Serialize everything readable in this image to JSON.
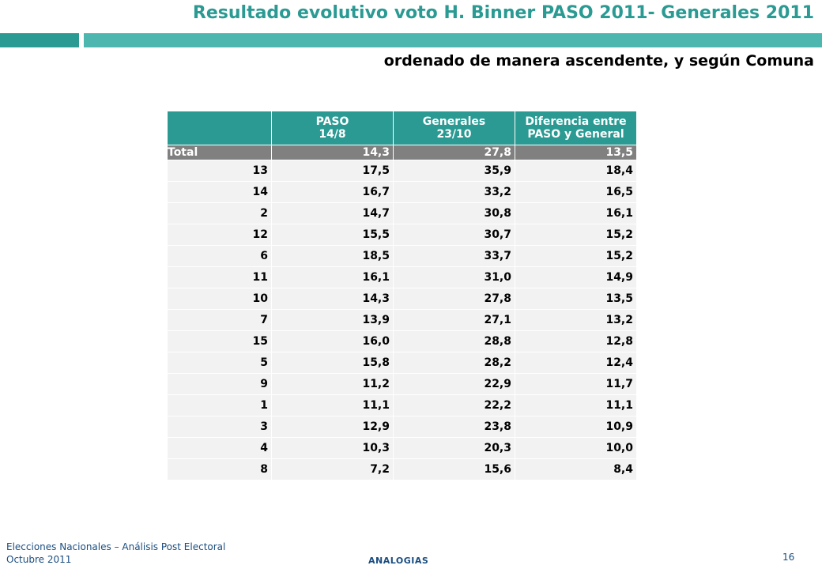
{
  "title": "Resultado evolutivo voto H. Binner PASO 2011- Generales 2011",
  "subtitle": "ordenado de manera ascendente, y según Comuna",
  "table": {
    "headers": [
      "",
      "PASO\n14/8",
      "Generales\n23/10",
      "Diferencia entre\nPASO y General"
    ],
    "total": [
      "Total",
      "14,3",
      "27,8",
      "13,5"
    ],
    "rows": [
      [
        "13",
        "17,5",
        "35,9",
        "18,4"
      ],
      [
        "14",
        "16,7",
        "33,2",
        "16,5"
      ],
      [
        "2",
        "14,7",
        "30,8",
        "16,1"
      ],
      [
        "12",
        "15,5",
        "30,7",
        "15,2"
      ],
      [
        "6",
        "18,5",
        "33,7",
        "15,2"
      ],
      [
        "11",
        "16,1",
        "31,0",
        "14,9"
      ],
      [
        "10",
        "14,3",
        "27,8",
        "13,5"
      ],
      [
        "7",
        "13,9",
        "27,1",
        "13,2"
      ],
      [
        "15",
        "16,0",
        "28,8",
        "12,8"
      ],
      [
        "5",
        "15,8",
        "28,2",
        "12,4"
      ],
      [
        "9",
        "11,2",
        "22,9",
        "11,7"
      ],
      [
        "1",
        "11,1",
        "22,2",
        "11,1"
      ],
      [
        "3",
        "12,9",
        "23,8",
        "10,9"
      ],
      [
        "4",
        "10,3",
        "20,3",
        "10,0"
      ],
      [
        "8",
        "7,2",
        "15,6",
        "8,4"
      ]
    ]
  },
  "footer": {
    "line1": "Elecciones Nacionales – Análisis Post Electoral",
    "line2": "Octubre 2011",
    "brand": "ANALOGIAS",
    "page": "16"
  },
  "colors": {
    "accent": "#2a9a93",
    "accent_light": "#4db6af",
    "total_row": "#808080",
    "cell": "#f2f2f2",
    "footer_text": "#1a4d80"
  }
}
